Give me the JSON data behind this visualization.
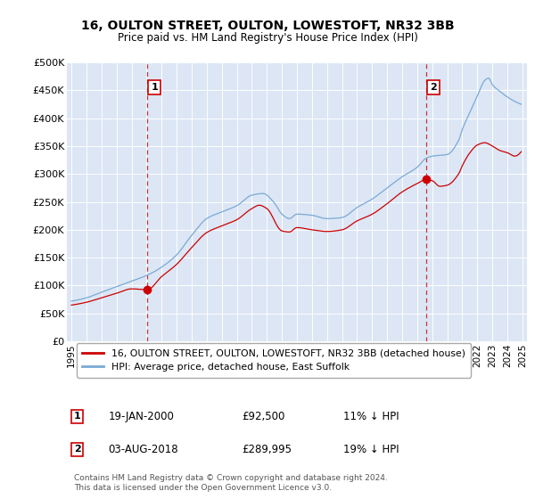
{
  "title": "16, OULTON STREET, OULTON, LOWESTOFT, NR32 3BB",
  "subtitle": "Price paid vs. HM Land Registry's House Price Index (HPI)",
  "background_color": "#dce6f5",
  "plot_bg_color": "#dce6f5",
  "hpi_color": "#7aaad4",
  "price_color": "#cc0000",
  "vline_color": "#cc3333",
  "sale1_year": 2000.05,
  "sale1_price": 92500,
  "sale2_year": 2018.58,
  "sale2_price": 289995,
  "ylim": [
    0,
    500000
  ],
  "xlim": [
    1994.7,
    2025.3
  ],
  "yticks": [
    0,
    50000,
    100000,
    150000,
    200000,
    250000,
    300000,
    350000,
    400000,
    450000,
    500000
  ],
  "ytick_labels": [
    "£0",
    "£50K",
    "£100K",
    "£150K",
    "£200K",
    "£250K",
    "£300K",
    "£350K",
    "£400K",
    "£450K",
    "£500K"
  ],
  "xticks": [
    1995,
    1996,
    1997,
    1998,
    1999,
    2000,
    2001,
    2002,
    2003,
    2004,
    2005,
    2006,
    2007,
    2008,
    2009,
    2010,
    2011,
    2012,
    2013,
    2014,
    2015,
    2016,
    2017,
    2018,
    2019,
    2020,
    2021,
    2022,
    2023,
    2024,
    2025
  ],
  "legend_label1": "16, OULTON STREET, OULTON, LOWESTOFT, NR32 3BB (detached house)",
  "legend_label2": "HPI: Average price, detached house, East Suffolk",
  "annotation1": [
    "1",
    "19-JAN-2000",
    "£92,500",
    "11% ↓ HPI"
  ],
  "annotation2": [
    "2",
    "03-AUG-2018",
    "£289,995",
    "19% ↓ HPI"
  ],
  "footnote": "Contains HM Land Registry data © Crown copyright and database right 2024.\nThis data is licensed under the Open Government Licence v3.0."
}
